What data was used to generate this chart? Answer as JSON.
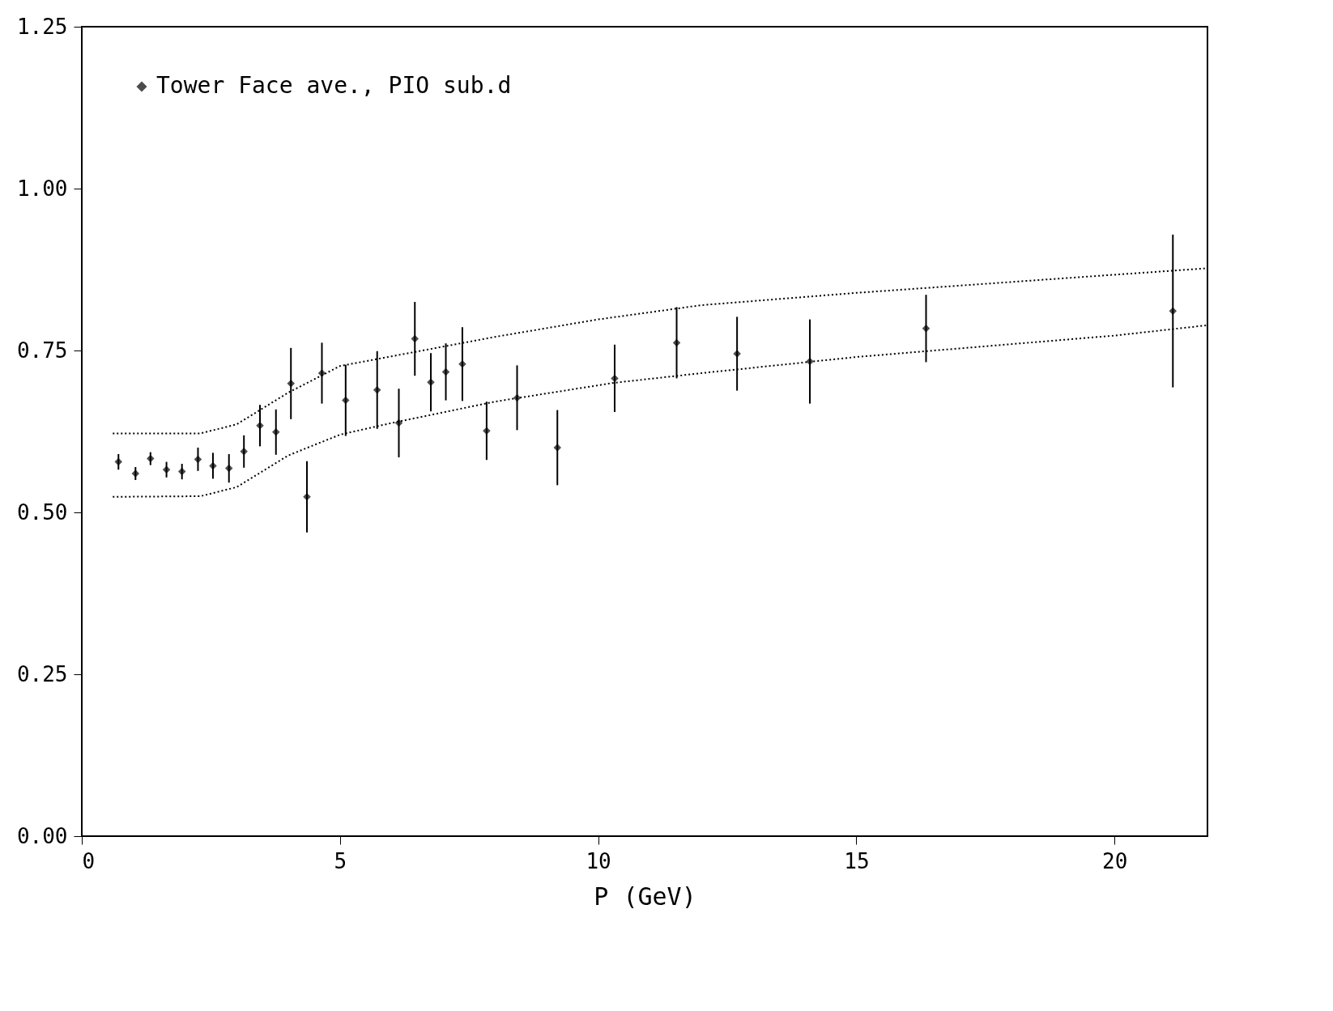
{
  "chart_data": {
    "type": "scatter",
    "xlabel": "P (GeV)",
    "xlim": [
      0,
      21.8
    ],
    "xticks": [
      0,
      5,
      10,
      15,
      20
    ],
    "ylim": [
      0,
      1.25
    ],
    "yticks": [
      {
        "value": 0,
        "label": "0.00"
      },
      {
        "value": 0.25,
        "label": "0.25"
      },
      {
        "value": 0.5,
        "label": "0.50"
      },
      {
        "value": 0.75,
        "label": "0.75"
      },
      {
        "value": 1.0,
        "label": "1.00"
      },
      {
        "value": 1.25,
        "label": "1.25"
      }
    ],
    "grid": false,
    "legend": "top left",
    "series": [
      {
        "name": "Tower Face ave., PIO sub.d",
        "color": "#000000",
        "marker": "diamond",
        "x": [
          0.71,
          1.04,
          1.33,
          1.64,
          1.94,
          2.25,
          2.54,
          2.85,
          3.14,
          3.45,
          3.76,
          4.05,
          4.36,
          4.65,
          5.11,
          5.72,
          6.14,
          6.45,
          6.76,
          7.05,
          7.37,
          7.84,
          8.43,
          9.21,
          10.32,
          11.52,
          12.69,
          14.1,
          16.35,
          21.13
        ],
        "values": [
          0.578,
          0.56,
          0.583,
          0.566,
          0.563,
          0.582,
          0.572,
          0.568,
          0.594,
          0.634,
          0.624,
          0.699,
          0.524,
          0.715,
          0.673,
          0.689,
          0.638,
          0.768,
          0.701,
          0.717,
          0.729,
          0.626,
          0.677,
          0.6,
          0.707,
          0.762,
          0.745,
          0.733,
          0.784,
          0.811
        ],
        "errors": [
          0.012,
          0.01,
          0.01,
          0.012,
          0.012,
          0.018,
          0.02,
          0.022,
          0.025,
          0.032,
          0.035,
          0.055,
          0.055,
          0.047,
          0.055,
          0.06,
          0.053,
          0.057,
          0.045,
          0.044,
          0.057,
          0.045,
          0.05,
          0.058,
          0.052,
          0.055,
          0.057,
          0.065,
          0.052,
          0.118
        ]
      },
      {
        "type": "line",
        "color": "#000000",
        "line_style": "dotted",
        "x": [
          0.6,
          2.3,
          3.0,
          4.0,
          5.0,
          6.0,
          8.0,
          10.0,
          12.0,
          15.0,
          20.0,
          21.8
        ],
        "values": [
          0.622,
          0.622,
          0.636,
          0.685,
          0.726,
          0.741,
          0.771,
          0.798,
          0.82,
          0.839,
          0.867,
          0.877
        ]
      },
      {
        "type": "line",
        "color": "#000000",
        "line_style": "dotted",
        "x": [
          0.6,
          2.3,
          3.0,
          4.0,
          5.0,
          6.0,
          8.0,
          10.3,
          12.0,
          15.0,
          20.0,
          21.8
        ],
        "values": [
          0.524,
          0.525,
          0.539,
          0.588,
          0.62,
          0.638,
          0.671,
          0.7,
          0.715,
          0.74,
          0.773,
          0.789
        ]
      }
    ]
  }
}
